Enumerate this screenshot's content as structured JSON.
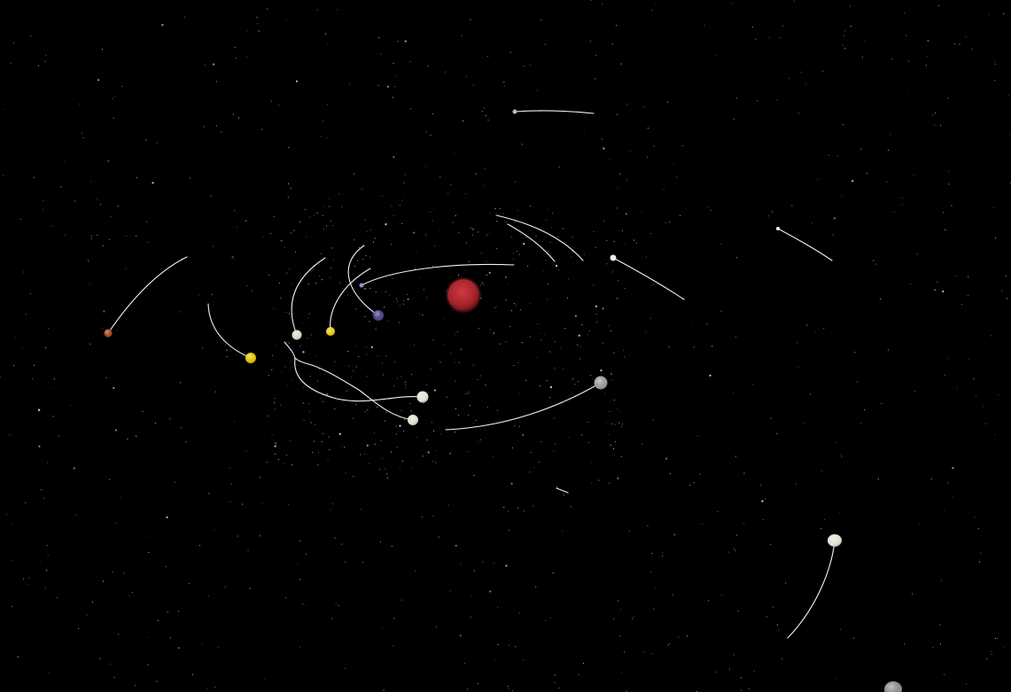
{
  "scene": {
    "background_color": "#000000",
    "star_color": "#ffffff",
    "trail_color": "#ffffff"
  },
  "central_star": {
    "color": "#b3262c"
  },
  "bodies": [
    {
      "id": "orange-planet",
      "color": "#a8431d",
      "trail": true
    },
    {
      "id": "yellow-planet-large",
      "color": "#e3c400",
      "trail": true
    },
    {
      "id": "white-planet-left",
      "color": "#ddd9c8",
      "trail": true
    },
    {
      "id": "yellow-planet-small",
      "color": "#e8cc10",
      "trail": true
    },
    {
      "id": "blue-planet",
      "color": "#4a3f8a",
      "trail": true
    },
    {
      "id": "small-blue-moon",
      "color": "#8d8fd0",
      "trail": true
    },
    {
      "id": "white-planet-lower-a",
      "color": "#e6e2d6",
      "trail": true
    },
    {
      "id": "white-planet-lower-b",
      "color": "#e3ded0",
      "trail": true
    },
    {
      "id": "grey-planet",
      "color": "#9a9a9a",
      "trail": true
    },
    {
      "id": "white-dwarf-right",
      "color": "#eeeeee",
      "trail": true
    },
    {
      "id": "top-comet",
      "color": "#bdbdbd",
      "trail": true
    },
    {
      "id": "far-right-comet",
      "color": "#f2f2f2",
      "trail": true
    },
    {
      "id": "white-planet-bottom-right",
      "color": "#e5e1d6",
      "trail": true
    },
    {
      "id": "grey-planet-corner",
      "color": "#8a8c94",
      "trail": false
    }
  ]
}
